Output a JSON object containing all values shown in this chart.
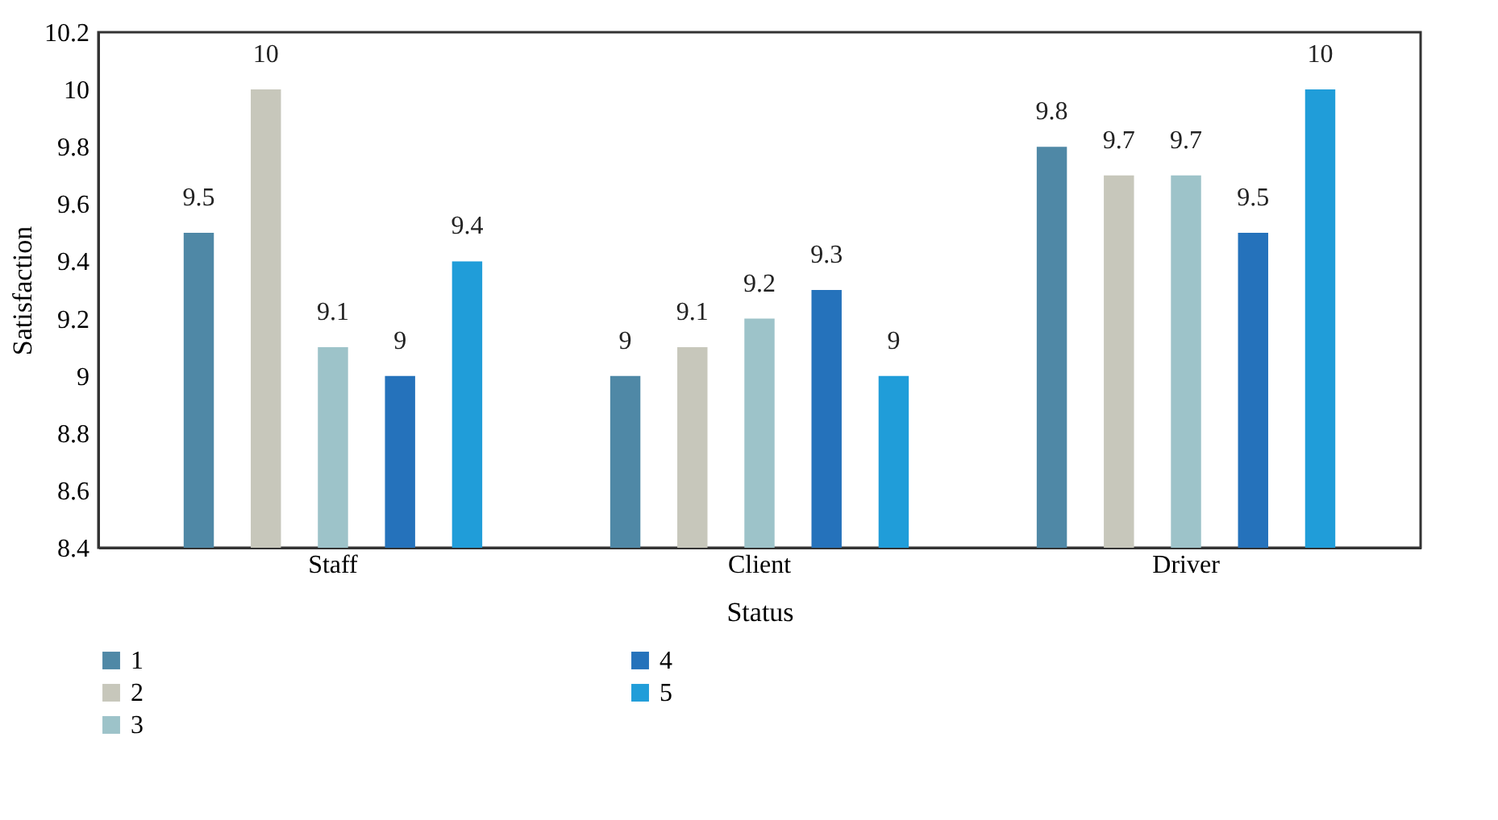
{
  "chart_data": {
    "type": "bar",
    "xlabel": "Status",
    "ylabel": "Satisfaction",
    "categories": [
      "Staff",
      "Client",
      "Driver"
    ],
    "series": [
      {
        "name": "1",
        "color": "#4f88a6",
        "values": [
          9.5,
          9.0,
          9.8
        ]
      },
      {
        "name": "2",
        "color": "#c7c7bb",
        "values": [
          10,
          9.1,
          9.7
        ]
      },
      {
        "name": "3",
        "color": "#9dc3c9",
        "values": [
          9.1,
          9.2,
          9.7
        ]
      },
      {
        "name": "4",
        "color": "#2572bb",
        "values": [
          9.0,
          9.3,
          9.5
        ]
      },
      {
        "name": "5",
        "color": "#209dd9",
        "values": [
          9.4,
          9.0,
          10
        ]
      }
    ],
    "ylim": [
      8.4,
      10.2
    ],
    "yticks": [
      8.4,
      8.6,
      8.8,
      9,
      9.2,
      9.4,
      9.6,
      9.8,
      10,
      10.2
    ],
    "value_labels": [
      [
        "9.5",
        "9",
        "9.8"
      ],
      [
        "10",
        "9.1",
        "9.7"
      ],
      [
        "9.1",
        "9.2",
        "9.7"
      ],
      [
        "9",
        "9.3",
        "9.5"
      ],
      [
        "9.4",
        "9",
        "10"
      ]
    ],
    "grid": false,
    "legend": "bottom left"
  }
}
